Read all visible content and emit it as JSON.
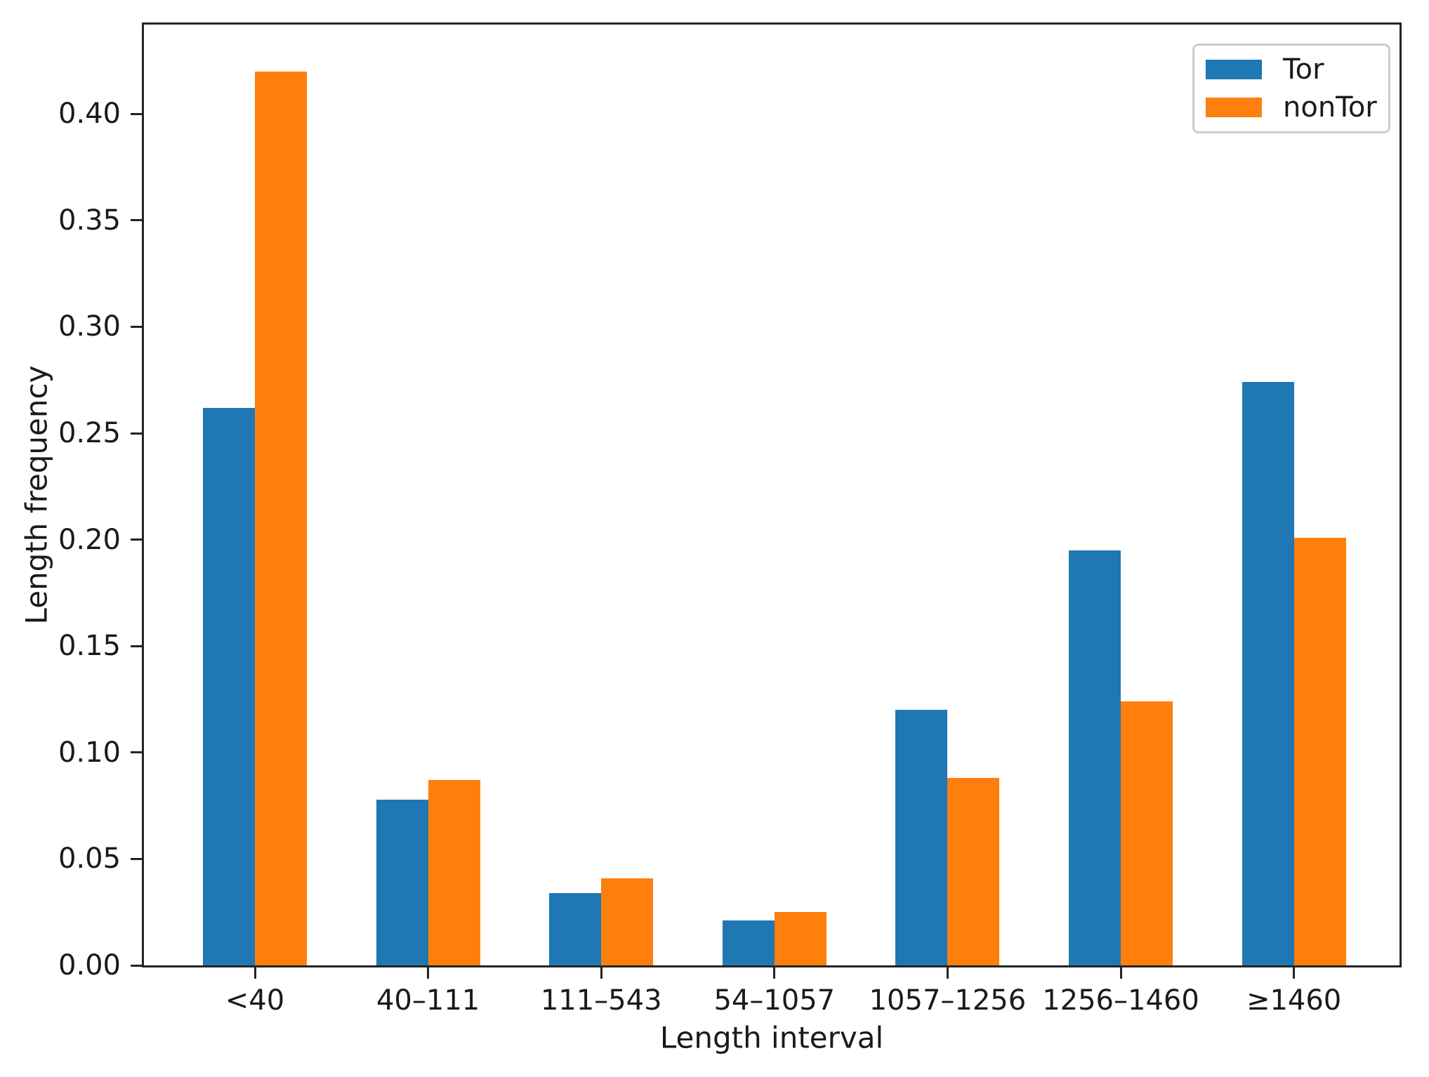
{
  "chart_data": {
    "type": "bar",
    "title": "",
    "xlabel": "Length interval",
    "ylabel": "Length frequency",
    "categories": [
      "<40",
      "40–111",
      "111–543",
      "54–1057",
      "1057–1256",
      "1256–1460",
      "≥1460"
    ],
    "series": [
      {
        "name": "Tor",
        "color": "#1f77b4",
        "values": [
          0.262,
          0.078,
          0.034,
          0.021,
          0.12,
          0.195,
          0.274
        ]
      },
      {
        "name": "nonTor",
        "color": "#ff7f0e",
        "values": [
          0.42,
          0.087,
          0.041,
          0.025,
          0.088,
          0.124,
          0.201
        ]
      }
    ],
    "ylim": [
      0,
      0.442
    ],
    "yticks": [
      "0.00",
      "0.05",
      "0.10",
      "0.15",
      "0.20",
      "0.25",
      "0.30",
      "0.35",
      "0.40"
    ],
    "grid": false,
    "legend_position": "upper right",
    "axis_color": "#242424",
    "text_color": "#1a1a1a"
  }
}
